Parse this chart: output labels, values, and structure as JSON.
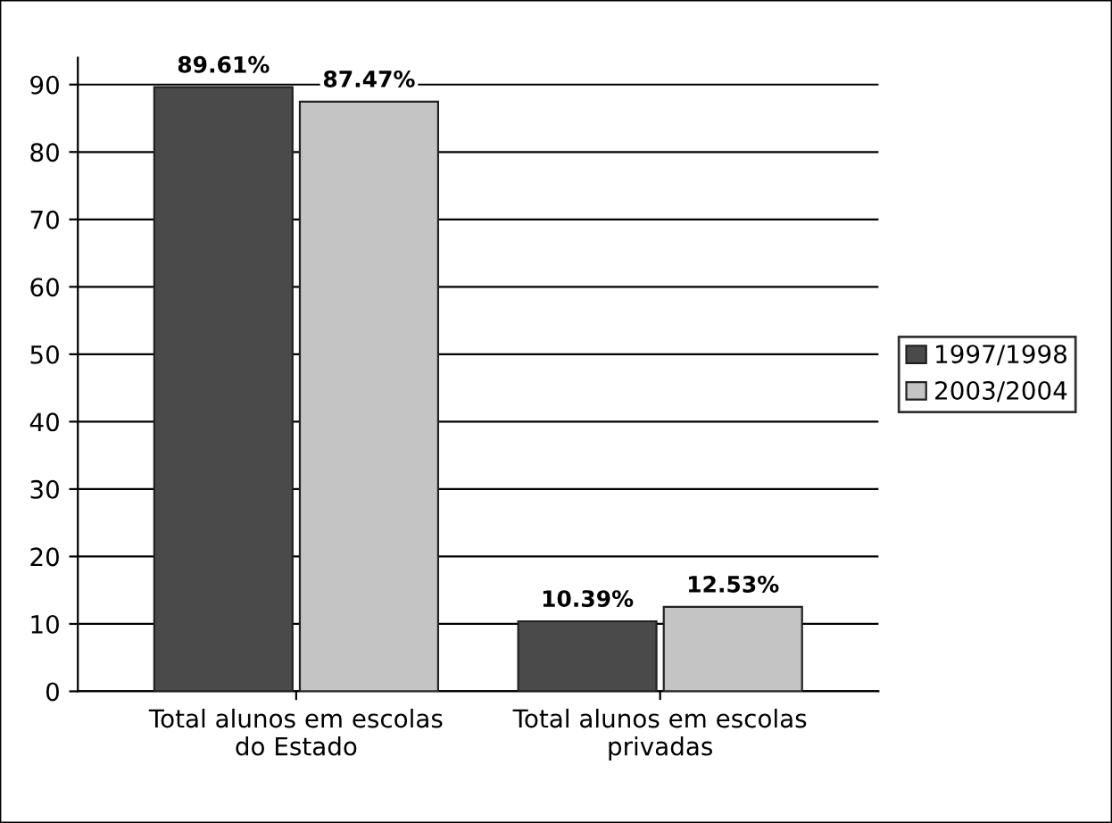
{
  "chart_data": {
    "type": "bar",
    "categories": [
      "Total alunos em escolas\ndo Estado",
      "Total alunos em escolas\nprivadas"
    ],
    "series": [
      {
        "name": "1997/1998",
        "color": "#4a4a4a",
        "values": [
          89.61,
          10.39
        ],
        "value_labels": [
          "89.61%",
          "10.39%"
        ]
      },
      {
        "name": "2003/2004",
        "color": "#c4c4c4",
        "values": [
          87.47,
          12.53
        ],
        "value_labels": [
          "87.47%",
          "12.53%"
        ]
      }
    ],
    "ylim": [
      0,
      94
    ],
    "yticks": [
      0,
      10,
      20,
      30,
      40,
      50,
      60,
      70,
      80,
      90
    ],
    "grid": "y",
    "legend": "right"
  }
}
